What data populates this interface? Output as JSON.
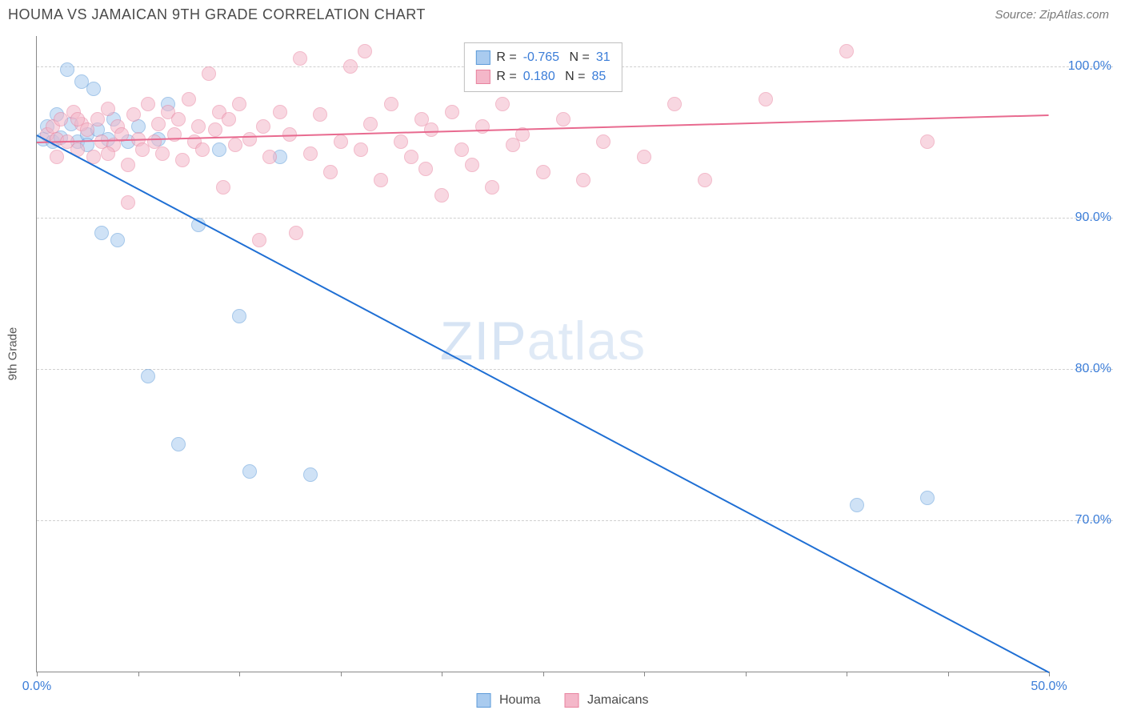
{
  "header": {
    "title": "HOUMA VS JAMAICAN 9TH GRADE CORRELATION CHART",
    "source": "Source: ZipAtlas.com"
  },
  "chart": {
    "type": "scatter",
    "y_axis_label": "9th Grade",
    "xlim": [
      0,
      50
    ],
    "ylim": [
      60,
      102
    ],
    "x_ticks": [
      0,
      5,
      10,
      15,
      20,
      25,
      30,
      35,
      40,
      45,
      50
    ],
    "x_tick_labels": {
      "0": "0.0%",
      "50": "50.0%"
    },
    "y_ticks": [
      70,
      80,
      90,
      100
    ],
    "y_tick_labels": {
      "70": "70.0%",
      "80": "80.0%",
      "90": "90.0%",
      "100": "100.0%"
    },
    "background_color": "#ffffff",
    "grid_color": "#d0d0d0",
    "axis_color": "#888888",
    "tick_label_color": "#3b7dd8",
    "marker_radius": 9,
    "marker_opacity": 0.55,
    "watermark": "ZIPatlas",
    "series": [
      {
        "name": "Houma",
        "color_fill": "#a9cbef",
        "color_stroke": "#5d9bd9",
        "swatch_fill": "#a9cbef",
        "swatch_stroke": "#5d9bd9",
        "trend_color": "#1f6fd4",
        "trend_width": 2,
        "R": "-0.765",
        "N": "31",
        "trend": {
          "x1": 0,
          "y1": 95.5,
          "x2": 50,
          "y2": 60
        },
        "points": [
          [
            0.3,
            95.2
          ],
          [
            0.5,
            96.0
          ],
          [
            0.8,
            95.0
          ],
          [
            1.0,
            96.8
          ],
          [
            1.2,
            95.3
          ],
          [
            1.5,
            99.8
          ],
          [
            1.7,
            96.2
          ],
          [
            2.0,
            95.0
          ],
          [
            2.2,
            99.0
          ],
          [
            2.5,
            95.5
          ],
          [
            2.8,
            98.5
          ],
          [
            3.0,
            95.8
          ],
          [
            3.2,
            89.0
          ],
          [
            3.5,
            95.2
          ],
          [
            3.8,
            96.5
          ],
          [
            4.0,
            88.5
          ],
          [
            4.5,
            95.0
          ],
          [
            5.0,
            96.0
          ],
          [
            5.5,
            79.5
          ],
          [
            6.0,
            95.2
          ],
          [
            6.5,
            97.5
          ],
          [
            7.0,
            75.0
          ],
          [
            8.0,
            89.5
          ],
          [
            9.0,
            94.5
          ],
          [
            10.0,
            83.5
          ],
          [
            10.5,
            73.2
          ],
          [
            12.0,
            94.0
          ],
          [
            13.5,
            73.0
          ],
          [
            40.5,
            71.0
          ],
          [
            44.0,
            71.5
          ],
          [
            2.5,
            94.8
          ]
        ]
      },
      {
        "name": "Jamaicans",
        "color_fill": "#f4b7c9",
        "color_stroke": "#e8839f",
        "swatch_fill": "#f4b7c9",
        "swatch_stroke": "#e8839f",
        "trend_color": "#e86a8f",
        "trend_width": 2,
        "R": "0.180",
        "N": "85",
        "trend": {
          "x1": 0,
          "y1": 95.0,
          "x2": 50,
          "y2": 96.8
        },
        "points": [
          [
            0.5,
            95.5
          ],
          [
            0.8,
            96.0
          ],
          [
            1.0,
            95.2
          ],
          [
            1.2,
            96.5
          ],
          [
            1.5,
            95.0
          ],
          [
            1.8,
            97.0
          ],
          [
            2.0,
            94.5
          ],
          [
            2.2,
            96.2
          ],
          [
            2.5,
            95.8
          ],
          [
            2.8,
            94.0
          ],
          [
            3.0,
            96.5
          ],
          [
            3.2,
            95.0
          ],
          [
            3.5,
            97.2
          ],
          [
            3.8,
            94.8
          ],
          [
            4.0,
            96.0
          ],
          [
            4.2,
            95.5
          ],
          [
            4.5,
            93.5
          ],
          [
            4.8,
            96.8
          ],
          [
            5.0,
            95.2
          ],
          [
            5.2,
            94.5
          ],
          [
            5.5,
            97.5
          ],
          [
            5.8,
            95.0
          ],
          [
            6.0,
            96.2
          ],
          [
            6.2,
            94.2
          ],
          [
            6.5,
            97.0
          ],
          [
            6.8,
            95.5
          ],
          [
            7.0,
            96.5
          ],
          [
            7.2,
            93.8
          ],
          [
            7.5,
            97.8
          ],
          [
            7.8,
            95.0
          ],
          [
            8.0,
            96.0
          ],
          [
            8.2,
            94.5
          ],
          [
            8.5,
            99.5
          ],
          [
            8.8,
            95.8
          ],
          [
            9.0,
            97.0
          ],
          [
            9.2,
            92.0
          ],
          [
            9.5,
            96.5
          ],
          [
            9.8,
            94.8
          ],
          [
            10.0,
            97.5
          ],
          [
            10.5,
            95.2
          ],
          [
            11.0,
            88.5
          ],
          [
            11.2,
            96.0
          ],
          [
            11.5,
            94.0
          ],
          [
            12.0,
            97.0
          ],
          [
            12.5,
            95.5
          ],
          [
            13.0,
            100.5
          ],
          [
            13.5,
            94.2
          ],
          [
            14.0,
            96.8
          ],
          [
            14.5,
            93.0
          ],
          [
            15.0,
            95.0
          ],
          [
            15.5,
            100.0
          ],
          [
            16.0,
            94.5
          ],
          [
            16.2,
            101.0
          ],
          [
            16.5,
            96.2
          ],
          [
            17.0,
            92.5
          ],
          [
            17.5,
            97.5
          ],
          [
            18.0,
            95.0
          ],
          [
            18.5,
            94.0
          ],
          [
            19.0,
            96.5
          ],
          [
            19.2,
            93.2
          ],
          [
            19.5,
            95.8
          ],
          [
            20.0,
            91.5
          ],
          [
            20.5,
            97.0
          ],
          [
            21.0,
            94.5
          ],
          [
            21.5,
            93.5
          ],
          [
            22.0,
            96.0
          ],
          [
            22.5,
            92.0
          ],
          [
            23.0,
            97.5
          ],
          [
            23.5,
            94.8
          ],
          [
            24.0,
            95.5
          ],
          [
            25.0,
            93.0
          ],
          [
            26.0,
            96.5
          ],
          [
            27.0,
            92.5
          ],
          [
            28.0,
            95.0
          ],
          [
            31.5,
            97.5
          ],
          [
            33.0,
            92.5
          ],
          [
            40.0,
            101.0
          ],
          [
            36.0,
            97.8
          ],
          [
            44.0,
            95.0
          ],
          [
            30.0,
            94.0
          ],
          [
            12.8,
            89.0
          ],
          [
            4.5,
            91.0
          ],
          [
            1.0,
            94.0
          ],
          [
            2.0,
            96.5
          ],
          [
            3.5,
            94.2
          ]
        ]
      }
    ],
    "bottom_legend": [
      {
        "label": "Houma",
        "fill": "#a9cbef",
        "stroke": "#5d9bd9"
      },
      {
        "label": "Jamaicans",
        "fill": "#f4b7c9",
        "stroke": "#e8839f"
      }
    ]
  }
}
